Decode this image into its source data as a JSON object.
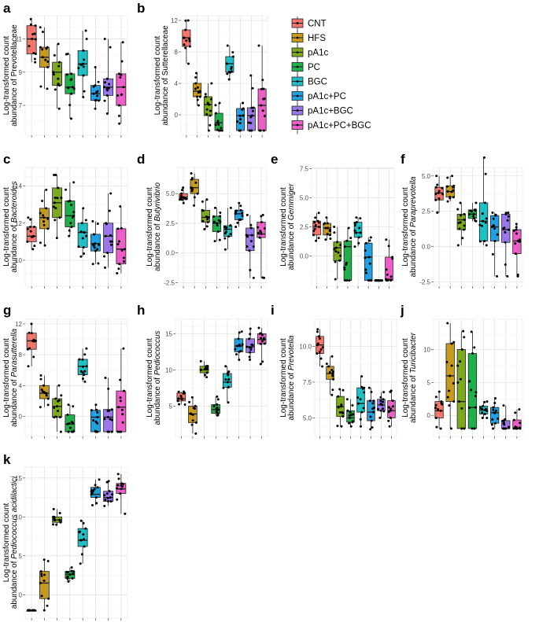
{
  "figure": {
    "groups": [
      "CNT",
      "HFS",
      "pA1c",
      "PC",
      "BGC",
      "pA1c+PC",
      "pA1c+BGC",
      "pA1c+PC+BGC"
    ],
    "colors": [
      "#F2766D",
      "#C79A1F",
      "#7DA91F",
      "#20B04B",
      "#1FBFC3",
      "#22A0DF",
      "#9A78E8",
      "#EC5EC8"
    ]
  },
  "chart_data": [
    {
      "id": "a",
      "type": "box",
      "label": "a",
      "ylabel_line1": "Log-transformed count",
      "ylabel_prefix": "abundance of ",
      "ylabel_taxon": "Prevotellaceae",
      "italic": false,
      "ylim": [
        5.2,
        12.4
      ],
      "yticks": [
        7,
        9,
        11
      ],
      "tick_labels": [
        "7",
        "9",
        "11"
      ],
      "boxes": [
        {
          "min": 9.6,
          "q1": 10.1,
          "median": 11.0,
          "q3": 11.8,
          "max": 12.2
        },
        {
          "min": 8.0,
          "q1": 9.3,
          "median": 9.9,
          "q3": 10.5,
          "max": 11.7
        },
        {
          "min": 6.8,
          "q1": 8.2,
          "median": 9.0,
          "q3": 9.6,
          "max": 10.7
        },
        {
          "min": 6.2,
          "q1": 7.7,
          "median": 8.1,
          "q3": 8.9,
          "max": 10.1
        },
        {
          "min": 7.5,
          "q1": 8.8,
          "median": 9.5,
          "q3": 10.3,
          "max": 11.5
        },
        {
          "min": 6.8,
          "q1": 7.3,
          "median": 7.7,
          "q3": 8.2,
          "max": 9.3
        },
        {
          "min": 6.5,
          "q1": 7.6,
          "median": 8.1,
          "q3": 8.6,
          "max": 11.0
        },
        {
          "min": 5.9,
          "q1": 7.0,
          "median": 8.1,
          "q3": 8.9,
          "max": 10.8
        }
      ]
    },
    {
      "id": "b",
      "type": "box",
      "label": "b",
      "ylabel_line1": "Log-transformed count",
      "ylabel_prefix": "abundance of ",
      "ylabel_taxon": "Sutterellaceae",
      "italic": false,
      "ylim": [
        -2.6,
        12.6
      ],
      "yticks": [
        0,
        4,
        8,
        12
      ],
      "tick_labels": [
        "0",
        "4",
        "8",
        "12"
      ],
      "boxes": [
        {
          "min": 6.5,
          "q1": 8.7,
          "median": 9.8,
          "q3": 10.8,
          "max": 12.0
        },
        {
          "min": 1.2,
          "q1": 2.3,
          "median": 3.0,
          "q3": 4.0,
          "max": 5.3
        },
        {
          "min": -2.0,
          "q1": -0.1,
          "median": 1.3,
          "q3": 2.3,
          "max": 4.0
        },
        {
          "min": -2.0,
          "q1": -2.0,
          "median": -1.0,
          "q3": 0.2,
          "max": 1.5
        },
        {
          "min": 4.5,
          "q1": 5.4,
          "median": 6.5,
          "q3": 7.4,
          "max": 8.8
        },
        {
          "min": -2.0,
          "q1": -2.0,
          "median": -0.1,
          "q3": 0.8,
          "max": 1.5
        },
        {
          "min": -2.0,
          "q1": -2.0,
          "median": -0.1,
          "q3": 0.9,
          "max": 5.0
        },
        {
          "min": -2.0,
          "q1": -2.0,
          "median": 1.2,
          "q3": 3.3,
          "max": 8.8
        }
      ]
    },
    {
      "id": "c",
      "type": "box",
      "label": "c",
      "ylabel_line1": "Log-transformed count",
      "ylabel_prefix": "abundance of ",
      "ylabel_taxon": "Bacteroides",
      "italic": true,
      "ylim": [
        8.6,
        15.0
      ],
      "yticks": [
        10,
        12,
        14
      ],
      "tick_labels": [
        "10",
        "12",
        "14"
      ],
      "boxes": [
        {
          "min": 10.6,
          "q1": 11.0,
          "median": 11.3,
          "q3": 11.8,
          "max": 12.3
        },
        {
          "min": 10.8,
          "q1": 11.7,
          "median": 12.3,
          "q3": 12.8,
          "max": 13.8
        },
        {
          "min": 11.2,
          "q1": 12.3,
          "median": 13.1,
          "q3": 13.9,
          "max": 14.6
        },
        {
          "min": 11.3,
          "q1": 11.8,
          "median": 12.4,
          "q3": 13.2,
          "max": 14.2
        },
        {
          "min": 10.2,
          "q1": 10.7,
          "median": 11.5,
          "q3": 12.0,
          "max": 12.8
        },
        {
          "min": 9.8,
          "q1": 10.5,
          "median": 10.9,
          "q3": 11.4,
          "max": 12.1
        },
        {
          "min": 9.6,
          "q1": 10.4,
          "median": 11.3,
          "q3": 12.0,
          "max": 13.6
        },
        {
          "min": 9.3,
          "q1": 9.8,
          "median": 10.6,
          "q3": 11.7,
          "max": 12.9
        }
      ]
    },
    {
      "id": "d",
      "type": "box",
      "label": "d",
      "ylabel_line1": "Log-transformed count",
      "ylabel_prefix": "abundance of ",
      "ylabel_taxon": "Butyrivibrio",
      "italic": true,
      "ylim": [
        -2.8,
        7.2
      ],
      "yticks": [
        -2.5,
        0.0,
        2.5,
        5.0
      ],
      "tick_labels": [
        "-2.5",
        "0.0",
        "2.5",
        "5.0"
      ],
      "boxes": [
        {
          "min": 4.2,
          "q1": 4.5,
          "median": 4.7,
          "q3": 5.0,
          "max": 5.5
        },
        {
          "min": 4.0,
          "q1": 5.0,
          "median": 5.5,
          "q3": 6.2,
          "max": 6.7
        },
        {
          "min": 2.0,
          "q1": 2.6,
          "median": 3.0,
          "q3": 3.6,
          "max": 4.5
        },
        {
          "min": 1.0,
          "q1": 1.8,
          "median": 2.5,
          "q3": 3.1,
          "max": 3.8
        },
        {
          "min": 0.3,
          "q1": 1.4,
          "median": 2.0,
          "q3": 2.3,
          "max": 3.8
        },
        {
          "min": 2.2,
          "q1": 2.8,
          "median": 3.3,
          "q3": 3.6,
          "max": 4.2
        },
        {
          "min": -2.1,
          "q1": 0.2,
          "median": 1.5,
          "q3": 2.1,
          "max": 3.2
        },
        {
          "min": -2.1,
          "q1": 1.3,
          "median": 1.6,
          "q3": 2.6,
          "max": 3.2
        }
      ]
    },
    {
      "id": "e",
      "type": "box",
      "label": "e",
      "ylabel_line1": "Log-transformed count",
      "ylabel_prefix": "abundance of ",
      "ylabel_taxon": "Gemmiger",
      "italic": true,
      "ylim": [
        -2.6,
        7.6
      ],
      "yticks": [
        0.0,
        2.5,
        5.0,
        7.5
      ],
      "tick_labels": [
        "0.0",
        "2.5",
        "5.0",
        "7.5"
      ],
      "boxes": [
        {
          "min": 1.3,
          "q1": 1.8,
          "median": 2.5,
          "q3": 3.0,
          "max": 3.7
        },
        {
          "min": 1.4,
          "q1": 1.8,
          "median": 2.4,
          "q3": 2.8,
          "max": 3.3
        },
        {
          "min": -2.0,
          "q1": -0.4,
          "median": 0.7,
          "q3": 1.2,
          "max": 2.5
        },
        {
          "min": -2.1,
          "q1": -2.1,
          "median": 0.8,
          "q3": 1.3,
          "max": 2.4
        },
        {
          "min": 0.8,
          "q1": 1.6,
          "median": 2.0,
          "q3": 2.9,
          "max": 3.3
        },
        {
          "min": -2.1,
          "q1": -2.1,
          "median": -0.1,
          "q3": 1.1,
          "max": 1.6
        },
        {
          "min": -2.1,
          "q1": -2.1,
          "median": -2.1,
          "q3": -2.1,
          "max": -2.1
        },
        {
          "min": -2.1,
          "q1": -2.1,
          "median": -2.0,
          "q3": -0.1,
          "max": 1.4
        }
      ]
    },
    {
      "id": "f",
      "type": "box",
      "label": "f",
      "ylabel_line1": "Log-transformed count",
      "ylabel_prefix": "abundance of ",
      "ylabel_taxon": "Paraprevotella",
      "italic": true,
      "ylim": [
        -2.8,
        5.6
      ],
      "yticks": [
        -2.5,
        0.0,
        2.5,
        5.0
      ],
      "tick_labels": [
        "-2.5",
        "0.0",
        "2.5",
        "5.0"
      ],
      "boxes": [
        {
          "min": 2.4,
          "q1": 3.3,
          "median": 3.8,
          "q3": 4.2,
          "max": 5.0
        },
        {
          "min": 3.2,
          "q1": 3.5,
          "median": 3.9,
          "q3": 4.3,
          "max": 5.0
        },
        {
          "min": 0.1,
          "q1": 1.2,
          "median": 1.9,
          "q3": 2.3,
          "max": 3.1
        },
        {
          "min": 1.8,
          "q1": 2.0,
          "median": 2.3,
          "q3": 2.6,
          "max": 3.1
        },
        {
          "min": 0.1,
          "q1": 0.4,
          "median": 1.8,
          "q3": 3.1,
          "max": 6.3
        },
        {
          "min": -2.1,
          "q1": 0.4,
          "median": 1.4,
          "q3": 2.2,
          "max": 2.4
        },
        {
          "min": -2.1,
          "q1": 0.3,
          "median": 1.2,
          "q3": 2.3,
          "max": 2.4
        },
        {
          "min": -2.1,
          "q1": -0.5,
          "median": 0.4,
          "q3": 1.2,
          "max": 1.6
        }
      ]
    },
    {
      "id": "g",
      "type": "box",
      "label": "g",
      "ylabel_line1": "Log-transformed count",
      "ylabel_prefix": "abundance of ",
      "ylabel_taxon": "Parasutterella",
      "italic": true,
      "ylim": [
        -2.6,
        12.6
      ],
      "yticks": [
        0,
        4,
        8,
        12
      ],
      "tick_labels": [
        "0",
        "4",
        "8",
        "12"
      ],
      "boxes": [
        {
          "min": 6.5,
          "q1": 8.7,
          "median": 9.8,
          "q3": 10.8,
          "max": 12.0
        },
        {
          "min": 1.2,
          "q1": 2.3,
          "median": 3.0,
          "q3": 4.0,
          "max": 5.3
        },
        {
          "min": -2.0,
          "q1": -0.1,
          "median": 1.3,
          "q3": 2.3,
          "max": 4.0
        },
        {
          "min": -2.0,
          "q1": -2.0,
          "median": -1.0,
          "q3": 0.2,
          "max": 1.5
        },
        {
          "min": 4.5,
          "q1": 5.4,
          "median": 6.5,
          "q3": 7.4,
          "max": 8.8
        },
        {
          "min": -2.0,
          "q1": -2.0,
          "median": -0.1,
          "q3": 0.8,
          "max": 1.5
        },
        {
          "min": -2.0,
          "q1": -2.0,
          "median": -0.1,
          "q3": 0.9,
          "max": 5.0
        },
        {
          "min": -2.0,
          "q1": -2.0,
          "median": 1.2,
          "q3": 3.3,
          "max": 8.8
        }
      ]
    },
    {
      "id": "h",
      "type": "box",
      "label": "h",
      "ylabel_line1": "Log-transformed count",
      "ylabel_prefix": "abundance of ",
      "ylabel_taxon": "Pediococcus",
      "italic": true,
      "ylim": [
        0.8,
        17.0
      ],
      "yticks": [
        5,
        10,
        15
      ],
      "tick_labels": [
        "5",
        "10",
        "15"
      ],
      "boxes": [
        {
          "min": 5.2,
          "q1": 5.7,
          "median": 6.0,
          "q3": 6.8,
          "max": 7.0
        },
        {
          "min": 1.2,
          "q1": 2.7,
          "median": 3.9,
          "q3": 5.0,
          "max": 6.2
        },
        {
          "min": 9.0,
          "q1": 9.6,
          "median": 10.0,
          "q3": 10.5,
          "max": 11.2
        },
        {
          "min": 3.7,
          "q1": 4.0,
          "median": 4.5,
          "q3": 5.2,
          "max": 6.3
        },
        {
          "min": 5.5,
          "q1": 7.6,
          "median": 8.3,
          "q3": 9.5,
          "max": 10.5
        },
        {
          "min": 11.4,
          "q1": 12.5,
          "median": 13.3,
          "q3": 14.3,
          "max": 15.3
        },
        {
          "min": 11.4,
          "q1": 12.4,
          "median": 13.2,
          "q3": 14.3,
          "max": 15.7
        },
        {
          "min": 10.8,
          "q1": 13.6,
          "median": 14.2,
          "q3": 15.0,
          "max": 15.8
        }
      ]
    },
    {
      "id": "i",
      "type": "box",
      "label": "i",
      "ylabel_line1": "Log-transformed count",
      "ylabel_prefix": "abundance of ",
      "ylabel_taxon": "Prevotella",
      "italic": true,
      "ylim": [
        3.7,
        11.9
      ],
      "yticks": [
        5.0,
        7.5,
        10.0
      ],
      "tick_labels": [
        "5.0",
        "7.5",
        "10.0"
      ],
      "boxes": [
        {
          "min": 8.6,
          "q1": 9.5,
          "median": 10.1,
          "q3": 10.7,
          "max": 11.2
        },
        {
          "min": 6.6,
          "q1": 7.7,
          "median": 8.1,
          "q3": 8.6,
          "max": 9.3
        },
        {
          "min": 4.4,
          "q1": 5.1,
          "median": 5.8,
          "q3": 6.5,
          "max": 7.0
        },
        {
          "min": 4.4,
          "q1": 4.7,
          "median": 5.0,
          "q3": 5.5,
          "max": 6.3
        },
        {
          "min": 4.4,
          "q1": 5.4,
          "median": 6.0,
          "q3": 7.1,
          "max": 7.9
        },
        {
          "min": 4.2,
          "q1": 4.8,
          "median": 5.4,
          "q3": 6.2,
          "max": 7.1
        },
        {
          "min": 5.0,
          "q1": 5.5,
          "median": 5.9,
          "q3": 6.3,
          "max": 6.8
        },
        {
          "min": 4.4,
          "q1": 5.0,
          "median": 5.5,
          "q3": 6.2,
          "max": 6.9
        }
      ]
    },
    {
      "id": "j",
      "type": "box",
      "label": "j",
      "ylabel_line1": "Log-transformed count",
      "ylabel_prefix": "abundance of ",
      "ylabel_taxon": "Turicibacter",
      "italic": true,
      "ylim": [
        -3.2,
        14.6
      ],
      "yticks": [
        0,
        5,
        10
      ],
      "tick_labels": [
        "0",
        "5",
        "10"
      ],
      "boxes": [
        {
          "min": -2.0,
          "q1": -0.4,
          "median": 0.7,
          "q3": 2.1,
          "max": 3.6
        },
        {
          "min": -2.0,
          "q1": 2.1,
          "median": 6.0,
          "q3": 10.9,
          "max": 14.0
        },
        {
          "min": -2.0,
          "q1": -2.0,
          "median": 2.1,
          "q3": 10.0,
          "max": 12.8
        },
        {
          "min": -2.0,
          "q1": -2.0,
          "median": 1.2,
          "q3": 9.4,
          "max": 12.7
        },
        {
          "min": -0.4,
          "q1": 0.2,
          "median": 0.8,
          "q3": 1.4,
          "max": 2.1
        },
        {
          "min": -2.0,
          "q1": -1.2,
          "median": 0.4,
          "q3": 1.2,
          "max": 2.6
        },
        {
          "min": -2.0,
          "q1": -2.0,
          "median": -2.0,
          "q3": -0.8,
          "max": 1.5
        },
        {
          "min": -2.0,
          "q1": -2.0,
          "median": -2.0,
          "q3": -0.7,
          "max": 0.9
        }
      ]
    },
    {
      "id": "k",
      "type": "box",
      "label": "k",
      "ylabel_line1": "Log-transformed count",
      "ylabel_prefix": "abundance of ",
      "ylabel_taxon": "Pediococcus acidilactici",
      "italic": true,
      "ylim": [
        -3.0,
        16.4
      ],
      "yticks": [
        0,
        5,
        10,
        15
      ],
      "tick_labels": [
        "0",
        "5",
        "10",
        "15"
      ],
      "boxes": [
        {
          "min": -2.0,
          "q1": -2.0,
          "median": -2.0,
          "q3": -2.0,
          "max": -2.0
        },
        {
          "min": -2.0,
          "q1": -0.5,
          "median": 1.5,
          "q3": 3.0,
          "max": 4.5
        },
        {
          "min": 9.0,
          "q1": 9.3,
          "median": 9.6,
          "q3": 10.0,
          "max": 11.0
        },
        {
          "min": 1.7,
          "q1": 2.1,
          "median": 2.6,
          "q3": 3.0,
          "max": 3.5
        },
        {
          "min": 4.0,
          "q1": 6.2,
          "median": 7.0,
          "q3": 8.5,
          "max": 9.5
        },
        {
          "min": 11.5,
          "q1": 12.5,
          "median": 12.9,
          "q3": 13.8,
          "max": 14.8
        },
        {
          "min": 11.4,
          "q1": 12.0,
          "median": 12.5,
          "q3": 13.3,
          "max": 14.6
        },
        {
          "min": 10.4,
          "q1": 13.0,
          "median": 13.6,
          "q3": 14.3,
          "max": 15.5
        }
      ]
    }
  ]
}
